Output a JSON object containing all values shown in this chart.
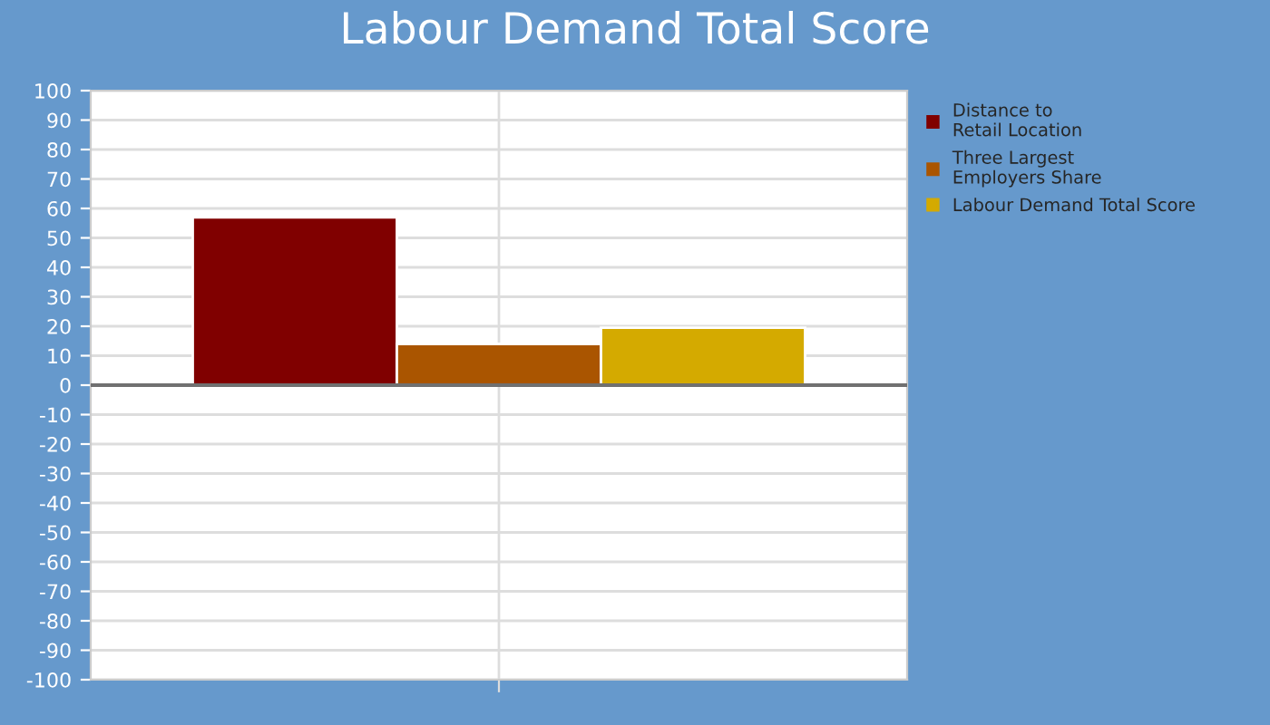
{
  "chart_data": {
    "type": "bar",
    "title": "Labour Demand Total Score",
    "categories": [
      null
    ],
    "series": [
      {
        "name": "Distance to\nRetail Location",
        "color": "#800000",
        "values": [
          57
        ]
      },
      {
        "name": "Three Largest\nEmployers Share",
        "color": "#aa5500",
        "values": [
          14
        ]
      },
      {
        "name": "Labour Demand Total Score",
        "color": "#d4aa00",
        "values": [
          19.5
        ]
      }
    ],
    "ylim": [
      -100,
      100
    ],
    "yticks": [
      -100,
      -90,
      -80,
      -70,
      -60,
      -50,
      -40,
      -30,
      -20,
      -10,
      0,
      10,
      20,
      30,
      40,
      50,
      60,
      70,
      80,
      90,
      100
    ],
    "grid": true,
    "legend": "right",
    "ref_lines": [
      {
        "axis": "y",
        "value": 0,
        "color": "#707070"
      }
    ]
  }
}
